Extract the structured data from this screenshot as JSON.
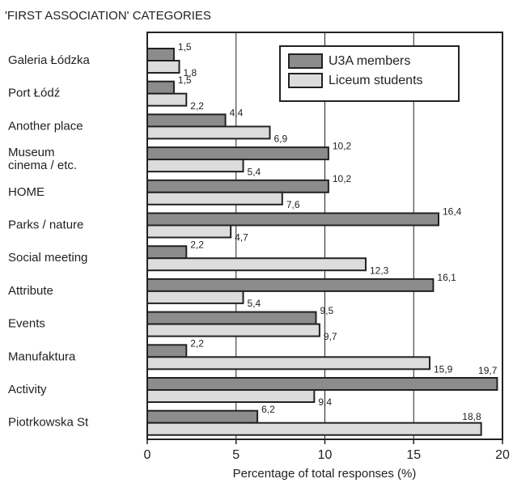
{
  "chart_data": {
    "type": "bar",
    "orientation": "horizontal",
    "title": "'FIRST ASSOCIATION' CATEGORIES",
    "xlabel": "Percentage of total responses (%)",
    "categories": [
      "Galeria Łódzka",
      "Port Łódź",
      "Another place",
      "Museum\ncinema / etc.",
      "HOME",
      "Parks / nature",
      "Social meeting",
      "Attribute",
      "Events",
      "Manufaktura",
      "Activity",
      "Piotrkowska St"
    ],
    "series": [
      {
        "name": "U3A members",
        "color": "#8c8c8c",
        "values": [
          1.5,
          1.5,
          4.4,
          10.2,
          10.2,
          16.4,
          2.2,
          16.1,
          9.5,
          2.2,
          19.7,
          6.2
        ],
        "value_labels": [
          "1,5",
          "1,5",
          "4,4",
          "10,2",
          "10,2",
          "16,4",
          "2,2",
          "16,1",
          "9,5",
          "2,2",
          "19,7",
          "6,2"
        ]
      },
      {
        "name": "Liceum students",
        "color": "#dcdcdc",
        "values": [
          1.8,
          2.2,
          6.9,
          5.4,
          7.6,
          4.7,
          12.3,
          5.4,
          9.7,
          15.9,
          9.4,
          18.8
        ],
        "value_labels": [
          "1,8",
          "2,2",
          "6,9",
          "5,4",
          "7,6",
          "4,7",
          "12,3",
          "5,4",
          "9,7",
          "15,9",
          "9,4",
          "18,8"
        ]
      }
    ],
    "xlim": [
      0,
      20
    ],
    "xticks": [
      0,
      5,
      10,
      15,
      20
    ],
    "grid": true,
    "legend": "upper right"
  }
}
